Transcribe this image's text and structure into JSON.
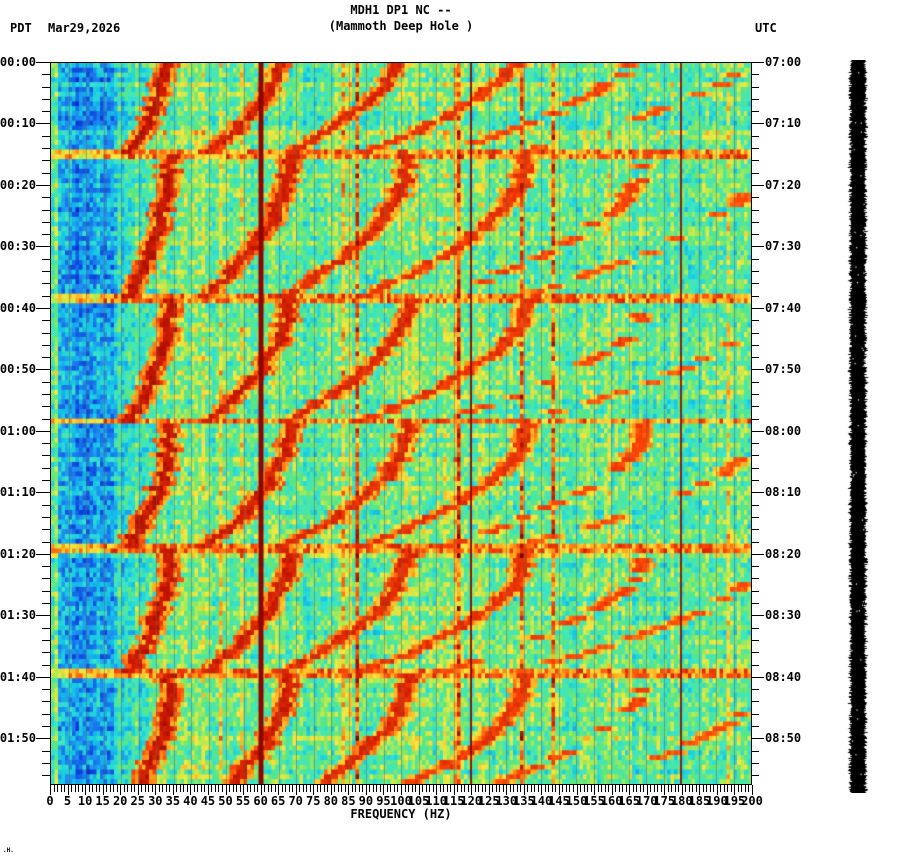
{
  "header": {
    "timezone_left": "PDT",
    "date": "Mar29,2026",
    "title_line1": "MDH1 DP1 NC --",
    "title_line2": "(Mammoth Deep Hole )",
    "timezone_right": "UTC"
  },
  "axes": {
    "left_time_labels": [
      "00:00",
      "00:10",
      "00:20",
      "00:30",
      "00:40",
      "00:50",
      "01:00",
      "01:10",
      "01:20",
      "01:30",
      "01:40",
      "01:50"
    ],
    "right_time_labels": [
      "07:00",
      "07:10",
      "07:20",
      "07:30",
      "07:40",
      "07:50",
      "08:00",
      "08:10",
      "08:20",
      "08:30",
      "08:40",
      "08:50"
    ],
    "freq_labels": [
      "0",
      "5",
      "10",
      "15",
      "20",
      "25",
      "30",
      "35",
      "40",
      "45",
      "50",
      "55",
      "60",
      "65",
      "70",
      "75",
      "80",
      "85",
      "90",
      "95",
      "100",
      "105",
      "110",
      "115",
      "120",
      "125",
      "130",
      "135",
      "140",
      "145",
      "150",
      "155",
      "160",
      "165",
      "170",
      "175",
      "180",
      "185",
      "190",
      "195",
      "200"
    ],
    "xlabel": "FREQUENCY (HZ)"
  },
  "footer": {
    "corner_mark": ".H."
  },
  "chart_data": {
    "type": "heatmap",
    "subtype": "seismic-spectrogram",
    "station": "MDH1 DP1 NC",
    "site": "Mammoth Deep Hole",
    "title": "MDH1 DP1 NC --",
    "subtitle": "(Mammoth Deep Hole )",
    "xlabel": "FREQUENCY (HZ)",
    "x_range_hz": [
      0,
      200
    ],
    "x_tick_major_hz": 5,
    "x_tick_minor_hz": 1,
    "time_start_local": "00:00",
    "time_start_utc": "07:00",
    "local_timezone": "PDT",
    "utc_offset_hours": 7,
    "duration_min": 117.6,
    "time_tick_major_min": 10,
    "time_tick_minor_min": 2,
    "grid_lines_every_hz": 5,
    "legend_position": "none",
    "colormap": "jet",
    "colormap_stops": [
      [
        0.0,
        "#0820c8"
      ],
      [
        0.12,
        "#1050e0"
      ],
      [
        0.22,
        "#1e8cf0"
      ],
      [
        0.32,
        "#14c8e6"
      ],
      [
        0.42,
        "#3ce6c8"
      ],
      [
        0.52,
        "#5ae682"
      ],
      [
        0.6,
        "#b4eb50"
      ],
      [
        0.68,
        "#ffe63c"
      ],
      [
        0.76,
        "#ffaa1e"
      ],
      [
        0.84,
        "#ff4808"
      ],
      [
        0.92,
        "#cd1a00"
      ],
      [
        1.0,
        "#7d0000"
      ]
    ],
    "features": {
      "powerline_harmonics_hz": [
        60,
        120,
        180
      ],
      "powerline_color": "#8c0700",
      "low_freq_quiet_band_hz": [
        2,
        18
      ],
      "glide_cycle_starts_min": [
        -5.7,
        14.6,
        37.9,
        58.2,
        78.7,
        99.1
      ],
      "glide_fundamental_start_hz": 34,
      "glide_fundamental_end_hz": 22,
      "glide_harmonic_count": 6,
      "broadband_bursts_at_cycle_starts": true,
      "clipped_trace_bar_right": true
    },
    "render_model": {
      "seed": 1337,
      "n_freq_cells": 200,
      "n_time_rows": 150,
      "noise": 0.26,
      "grid_line_rgba": "rgba(105,98,88,0.5)"
    }
  }
}
